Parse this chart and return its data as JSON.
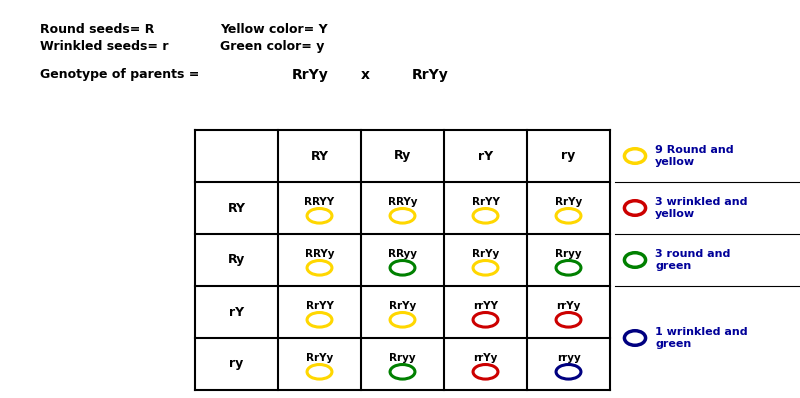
{
  "legend_labels": [
    "9 Round and\nyellow",
    "3 wrinkled and\nyellow",
    "3 round and\ngreen",
    "1 wrinkled and\ngreen"
  ],
  "legend_colors": [
    "#FFD700",
    "#CC0000",
    "#008000",
    "#000080"
  ],
  "col_headers": [
    "RY",
    "Ry",
    "rY",
    "ry"
  ],
  "row_headers": [
    "RY",
    "Ry",
    "rY",
    "ry"
  ],
  "cell_genotypes": [
    [
      "RRYY",
      "RRYy",
      "RrYY",
      "RrYy"
    ],
    [
      "RRYy",
      "RRyy",
      "RrYy",
      "Rryy"
    ],
    [
      "RrYY",
      "RrYy",
      "rrYY",
      "rrYy"
    ],
    [
      "RrYy",
      "Rryy",
      "rrYy",
      "rryy"
    ]
  ],
  "cell_colors": [
    [
      "#FFD700",
      "#FFD700",
      "#FFD700",
      "#FFD700"
    ],
    [
      "#FFD700",
      "#008000",
      "#FFD700",
      "#008000"
    ],
    [
      "#FFD700",
      "#FFD700",
      "#CC0000",
      "#CC0000"
    ],
    [
      "#FFD700",
      "#008000",
      "#CC0000",
      "#000080"
    ]
  ],
  "fig_width": 8.0,
  "fig_height": 3.98,
  "dpi": 100
}
